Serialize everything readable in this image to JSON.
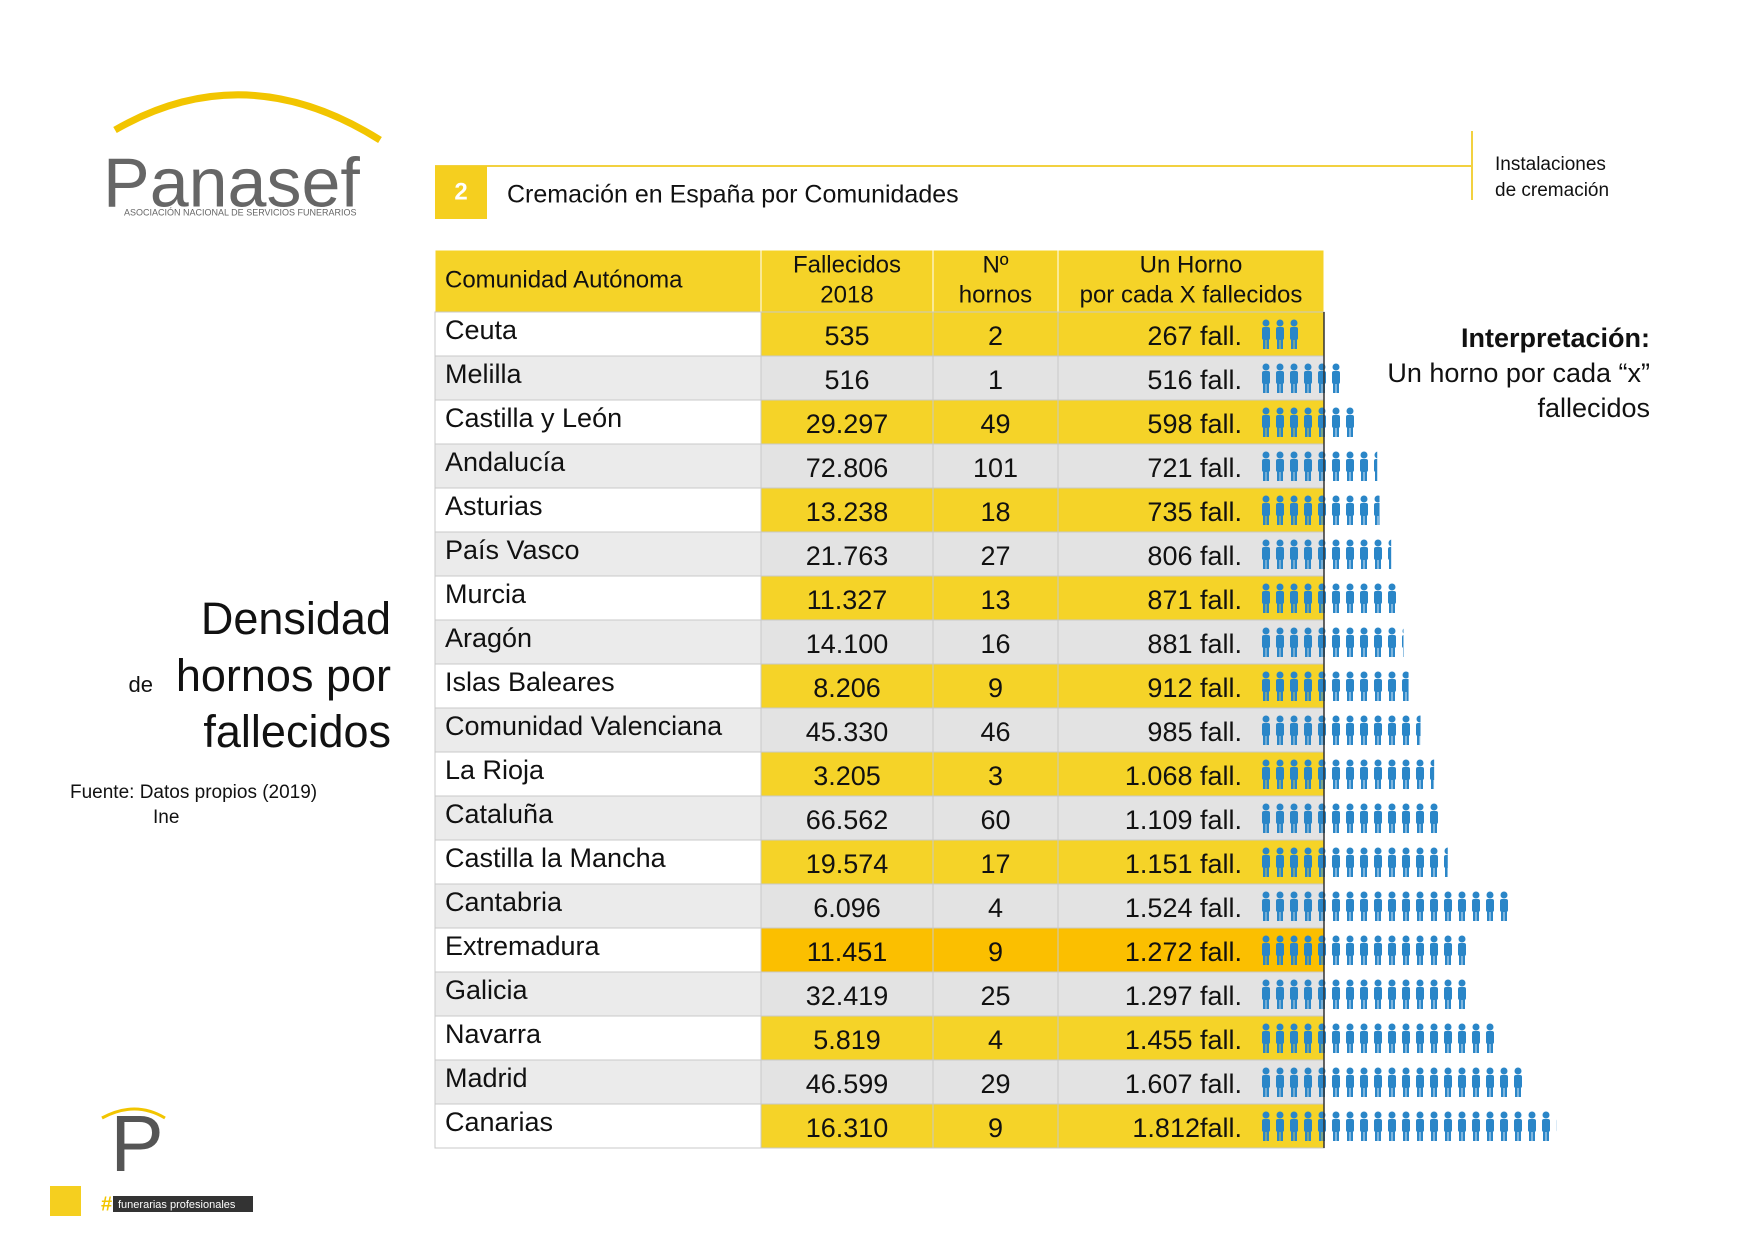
{
  "logo": {
    "name": "Panasef",
    "tagline": "ASOCIACIÓN NACIONAL DE SERVICIOS FUNERARIOS"
  },
  "header": {
    "number": "2",
    "title": "Cremación en España por Comunidades",
    "section": [
      "Instalaciones",
      "de cremación"
    ]
  },
  "sidebar": {
    "title": [
      "Densidad",
      "de",
      "hornos por",
      "fallecidos"
    ],
    "source": [
      "Fuente: Datos propios (2019)",
      "Ine"
    ]
  },
  "interpretation": {
    "title": "Interpretación:",
    "text": [
      "Un horno por cada “x”",
      "fallecidos"
    ]
  },
  "table": {
    "headers": [
      [
        "Comunidad Autónoma"
      ],
      [
        "Fallecidos",
        "2018"
      ],
      [
        "Nº",
        "hornos"
      ],
      [
        "Un Horno",
        "por cada X fallecidos"
      ]
    ],
    "rows": [
      [
        "Ceuta",
        "535",
        "2",
        "267 fall."
      ],
      [
        "Melilla",
        "516",
        "1",
        "516 fall."
      ],
      [
        "Castilla y León",
        "29.297",
        "49",
        "598 fall."
      ],
      [
        "Andalucía",
        "72.806",
        "101",
        "721 fall."
      ],
      [
        "Asturias",
        "13.238",
        "18",
        "735 fall."
      ],
      [
        "País Vasco",
        "21.763",
        "27",
        "806 fall."
      ],
      [
        "Murcia",
        "11.327",
        "13",
        "871 fall."
      ],
      [
        "Aragón",
        "14.100",
        "16",
        "881 fall."
      ],
      [
        "Islas Baleares",
        "8.206",
        "9",
        "912 fall."
      ],
      [
        "Comunidad Valenciana",
        "45.330",
        "46",
        "985 fall."
      ],
      [
        "La Rioja",
        "3.205",
        "3",
        "1.068 fall."
      ],
      [
        "Cataluña",
        "66.562",
        "60",
        "1.109 fall."
      ],
      [
        "Castilla la Mancha",
        "19.574",
        "17",
        "1.151 fall."
      ],
      [
        "Cantabria",
        "6.096",
        "4",
        "1.524 fall."
      ],
      [
        "Extremadura",
        "11.451",
        "9",
        "1.272 fall."
      ],
      [
        "Galicia",
        "32.419",
        "25",
        "1.297 fall."
      ],
      [
        "Navarra",
        "5.819",
        "4",
        "1.455 fall."
      ],
      [
        "Madrid",
        "46.599",
        "29",
        "1.607 fall."
      ],
      [
        "Canarias",
        "16.310",
        "9",
        "1.812fall."
      ]
    ]
  },
  "footer_logo": {
    "letter": "P",
    "hash": "#",
    "text": "funerarias profesionales"
  }
}
